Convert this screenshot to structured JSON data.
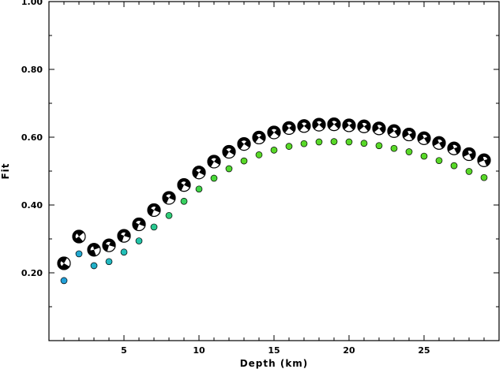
{
  "chart_data": {
    "type": "scatter",
    "title": "",
    "xlabel": "Depth (km)",
    "ylabel": "Fit",
    "xlim": [
      0,
      30
    ],
    "ylim": [
      0,
      1.0
    ],
    "xticks": [
      5,
      10,
      15,
      20,
      25
    ],
    "yticks": [
      0.2,
      0.4,
      0.6,
      0.8,
      1.0
    ],
    "ytick_labels": [
      "0.20",
      "0.40",
      "0.60",
      "0.80",
      "1.00"
    ],
    "grid": false,
    "legend": "none",
    "series": [
      {
        "marker": "focal-mechanism",
        "color": "#000000",
        "x": [
          1,
          2,
          3,
          4,
          5,
          6,
          7,
          8,
          9,
          10,
          11,
          12,
          13,
          14,
          15,
          16,
          17,
          18,
          19,
          20,
          21,
          22,
          23,
          24,
          25,
          26,
          27,
          28,
          29
        ],
        "y": [
          0.228,
          0.307,
          0.268,
          0.281,
          0.309,
          0.343,
          0.385,
          0.421,
          0.459,
          0.496,
          0.528,
          0.557,
          0.58,
          0.599,
          0.614,
          0.627,
          0.633,
          0.637,
          0.638,
          0.635,
          0.632,
          0.626,
          0.618,
          0.608,
          0.597,
          0.583,
          0.567,
          0.55,
          0.532
        ]
      },
      {
        "marker": "circle",
        "x": [
          1,
          2,
          3,
          4,
          5,
          6,
          7,
          8,
          9,
          10,
          11,
          12,
          13,
          14,
          15,
          16,
          17,
          18,
          19,
          20,
          21,
          22,
          23,
          24,
          25,
          26,
          27,
          28,
          29
        ],
        "y": [
          0.177,
          0.256,
          0.221,
          0.233,
          0.261,
          0.294,
          0.335,
          0.369,
          0.411,
          0.447,
          0.479,
          0.507,
          0.53,
          0.548,
          0.562,
          0.573,
          0.581,
          0.586,
          0.587,
          0.586,
          0.582,
          0.575,
          0.567,
          0.557,
          0.544,
          0.531,
          0.516,
          0.499,
          0.481
        ],
        "colors": [
          "#22a0d8",
          "#22a8d0",
          "#22b0c8",
          "#22b8c0",
          "#22c0b8",
          "#22c4a8",
          "#28c890",
          "#30cc78",
          "#38d060",
          "#40d448",
          "#48d838",
          "#50d830",
          "#58d828",
          "#58d828",
          "#58d828",
          "#58d828",
          "#58d828",
          "#58d828",
          "#58d828",
          "#58d828",
          "#58d828",
          "#58d828",
          "#58d828",
          "#58d828",
          "#58d828",
          "#58d828",
          "#58d828",
          "#58d828",
          "#58d828"
        ]
      }
    ]
  }
}
